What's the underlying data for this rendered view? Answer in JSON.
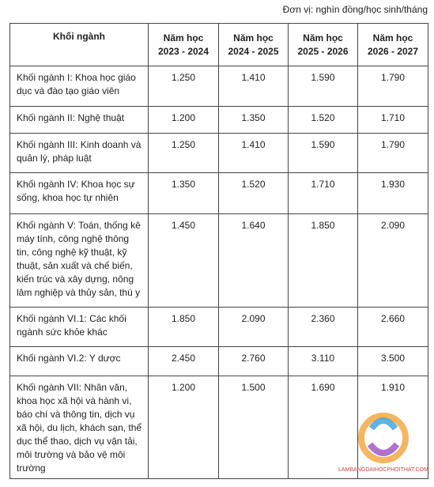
{
  "unit_note": "Đơn vị: nghìn đồng/học sinh/tháng",
  "table": {
    "header": [
      "Khối ngành",
      [
        "Năm học",
        "2023 - 2024"
      ],
      [
        "Năm học",
        "2024 - 2025"
      ],
      [
        "Năm học",
        "2025 - 2026"
      ],
      [
        "Năm học",
        "2026 - 2027"
      ]
    ],
    "rows": [
      [
        "Khối ngành I: Khoa học giáo dục và đào tạo giáo viên",
        "1.250",
        "1.410",
        "1.590",
        "1.790"
      ],
      [
        "Khối ngành II: Nghệ thuật",
        "1.200",
        "1.350",
        "1.520",
        "1.710"
      ],
      [
        "Khối ngành III: Kinh doanh và quản lý, pháp luật",
        "1.250",
        "1.410",
        "1.590",
        "1.790"
      ],
      [
        "Khối ngành IV: Khoa học sự sống, khoa học tự nhiên",
        "1.350",
        "1.520",
        "1.710",
        "1.930"
      ],
      [
        "Khối ngành V: Toán, thống kê máy tính, công nghệ thông tin, công nghệ kỹ thuật, kỹ thuật, sản xuất và chế biến, kiến trúc và xây dựng, nông lâm nghiệp và thủy sản, thú y",
        "1.450",
        "1.640",
        "1.850",
        "2.090"
      ],
      [
        "Khối ngành VI.1: Các khối ngành sức khỏe khác",
        "1.850",
        "2.090",
        "2.360",
        "2.660"
      ],
      [
        "Khối ngành VI.2: Y dược",
        "2.450",
        "2.760",
        "3.110",
        "3.500"
      ],
      [
        "Khối ngành VII: Nhân văn, khoa học xã hội và hành vi, báo chí và thông tin, dịch vụ xã hội, du lịch, khách sạn, thể dục thể thao, dịch vụ vận tải, môi trường và bảo vệ môi trường",
        "1.200",
        "1.500",
        "1.690",
        "1.910"
      ]
    ]
  },
  "watermark": "LAMBANGDAIHOCPHOITHAT.COM"
}
